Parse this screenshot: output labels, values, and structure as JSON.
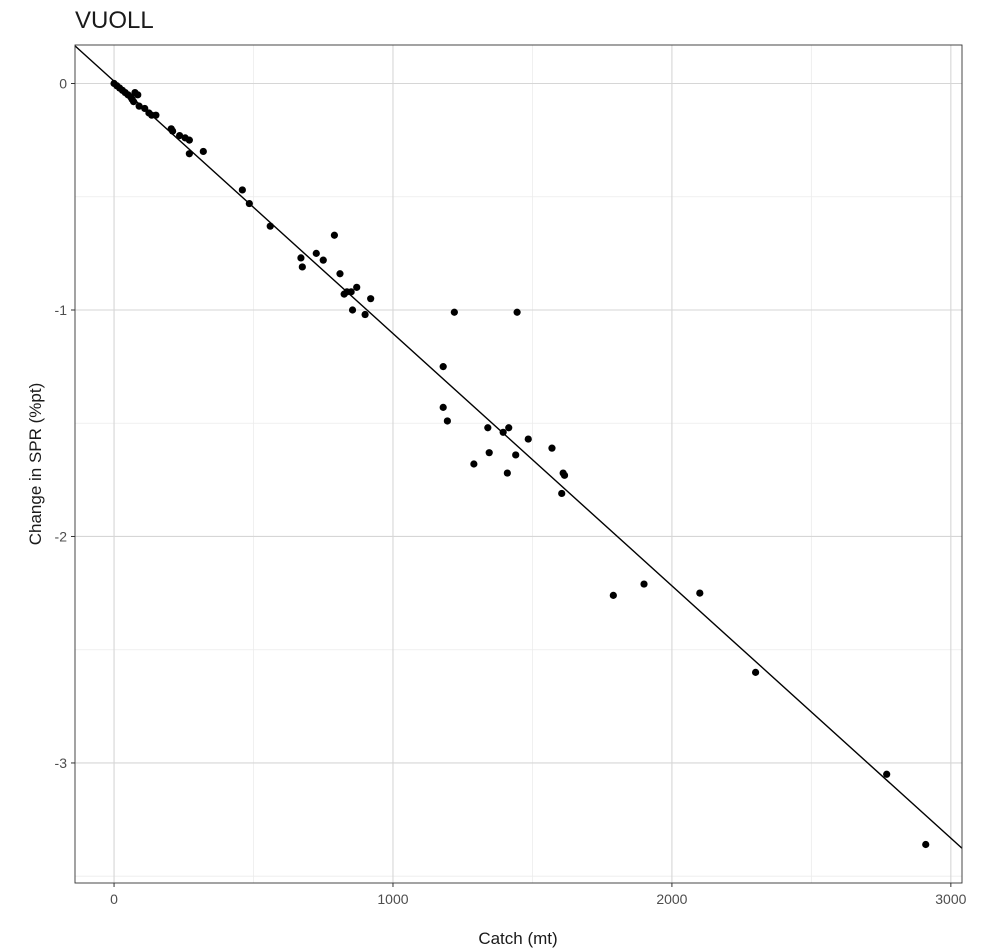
{
  "chart_data": {
    "type": "scatter",
    "title": "VUOLL",
    "xlabel": "Catch (mt)",
    "ylabel": "Change in SPR (%pt)",
    "xlim": [
      -140,
      3040
    ],
    "ylim": [
      -3.53,
      0.17
    ],
    "x_ticks": [
      0,
      1000,
      2000,
      3000
    ],
    "x_tick_labels": [
      "0",
      "1000",
      "2000",
      "3000"
    ],
    "y_ticks": [
      0,
      -1,
      -2,
      -3
    ],
    "y_tick_labels": [
      "0",
      "-1",
      "-2",
      "-3"
    ],
    "grid": true,
    "legend": "none",
    "fit_line": {
      "slope": -0.001114,
      "intercept": 0.01
    },
    "point_color": "#000000",
    "line_color": "#000000",
    "points": [
      {
        "x": 0,
        "y": 0.0
      },
      {
        "x": 10,
        "y": -0.01
      },
      {
        "x": 20,
        "y": -0.02
      },
      {
        "x": 30,
        "y": -0.03
      },
      {
        "x": 40,
        "y": -0.04
      },
      {
        "x": 50,
        "y": -0.05
      },
      {
        "x": 60,
        "y": -0.06
      },
      {
        "x": 65,
        "y": -0.07
      },
      {
        "x": 70,
        "y": -0.08
      },
      {
        "x": 75,
        "y": -0.04
      },
      {
        "x": 85,
        "y": -0.05
      },
      {
        "x": 90,
        "y": -0.1
      },
      {
        "x": 110,
        "y": -0.11
      },
      {
        "x": 125,
        "y": -0.13
      },
      {
        "x": 135,
        "y": -0.14
      },
      {
        "x": 150,
        "y": -0.14
      },
      {
        "x": 205,
        "y": -0.2
      },
      {
        "x": 210,
        "y": -0.21
      },
      {
        "x": 235,
        "y": -0.23
      },
      {
        "x": 255,
        "y": -0.24
      },
      {
        "x": 270,
        "y": -0.25
      },
      {
        "x": 270,
        "y": -0.31
      },
      {
        "x": 320,
        "y": -0.3
      },
      {
        "x": 460,
        "y": -0.47
      },
      {
        "x": 485,
        "y": -0.53
      },
      {
        "x": 560,
        "y": -0.63
      },
      {
        "x": 670,
        "y": -0.77
      },
      {
        "x": 675,
        "y": -0.81
      },
      {
        "x": 725,
        "y": -0.75
      },
      {
        "x": 750,
        "y": -0.78
      },
      {
        "x": 790,
        "y": -0.67
      },
      {
        "x": 810,
        "y": -0.84
      },
      {
        "x": 825,
        "y": -0.93
      },
      {
        "x": 835,
        "y": -0.92
      },
      {
        "x": 850,
        "y": -0.92
      },
      {
        "x": 870,
        "y": -0.9
      },
      {
        "x": 855,
        "y": -1.0
      },
      {
        "x": 900,
        "y": -1.02
      },
      {
        "x": 920,
        "y": -0.95
      },
      {
        "x": 1180,
        "y": -1.25
      },
      {
        "x": 1180,
        "y": -1.43
      },
      {
        "x": 1195,
        "y": -1.49
      },
      {
        "x": 1220,
        "y": -1.01
      },
      {
        "x": 1290,
        "y": -1.68
      },
      {
        "x": 1340,
        "y": -1.52
      },
      {
        "x": 1345,
        "y": -1.63
      },
      {
        "x": 1395,
        "y": -1.54
      },
      {
        "x": 1410,
        "y": -1.72
      },
      {
        "x": 1415,
        "y": -1.52
      },
      {
        "x": 1440,
        "y": -1.64
      },
      {
        "x": 1445,
        "y": -1.01
      },
      {
        "x": 1485,
        "y": -1.57
      },
      {
        "x": 1570,
        "y": -1.61
      },
      {
        "x": 1610,
        "y": -1.72
      },
      {
        "x": 1615,
        "y": -1.73
      },
      {
        "x": 1605,
        "y": -1.81
      },
      {
        "x": 1790,
        "y": -2.26
      },
      {
        "x": 1900,
        "y": -2.21
      },
      {
        "x": 2100,
        "y": -2.25
      },
      {
        "x": 2300,
        "y": -2.6
      },
      {
        "x": 2770,
        "y": -3.05
      },
      {
        "x": 2910,
        "y": -3.36
      }
    ]
  }
}
